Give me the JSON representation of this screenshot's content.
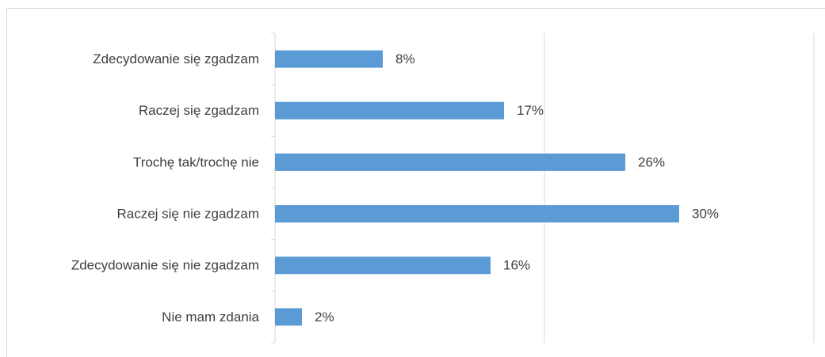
{
  "chart_data": {
    "type": "bar",
    "orientation": "horizontal",
    "categories": [
      "Zdecydowanie się zgadzam",
      "Raczej się zgadzam",
      "Trochę tak/trochę nie",
      "Raczej się nie zgadzam",
      "Zdecydowanie się nie zgadzam",
      "Nie mam zdania"
    ],
    "values": [
      8,
      17,
      26,
      30,
      16,
      2
    ],
    "value_labels": [
      "8%",
      "17%",
      "26%",
      "30%",
      "16%",
      "2%"
    ],
    "color": "#5b9bd5",
    "xlim": [
      0,
      40
    ],
    "xticks": [
      0,
      20,
      40
    ],
    "grid": true
  }
}
